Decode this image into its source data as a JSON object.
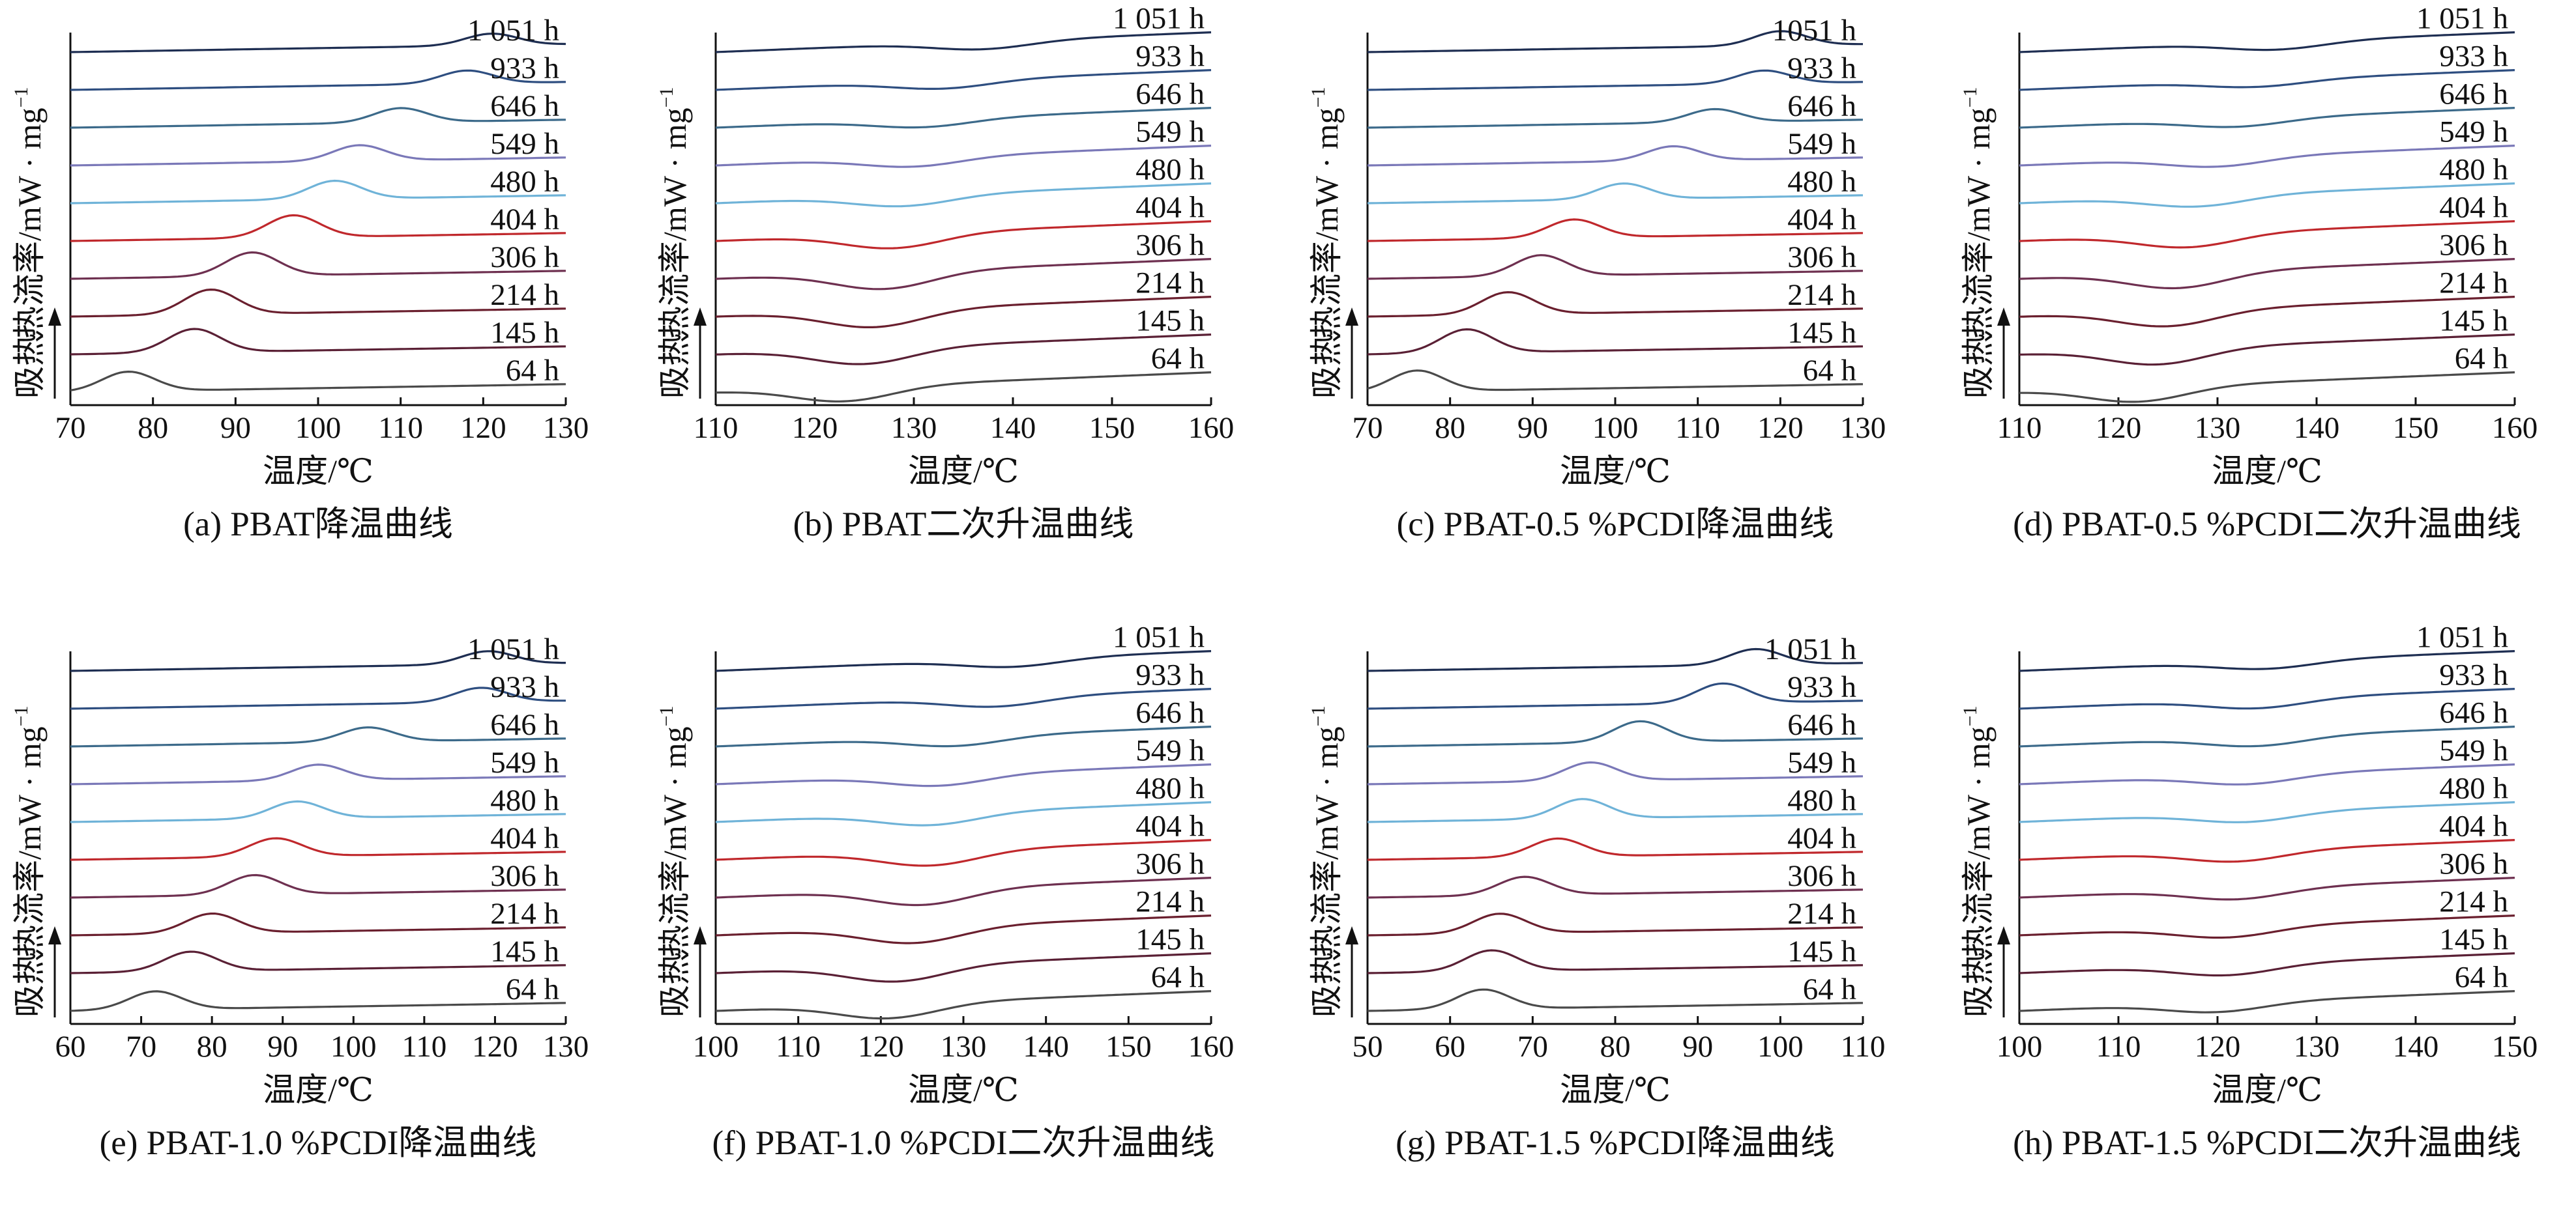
{
  "figure": {
    "ylabel": "热流率/mW · mg",
    "ylabel_sup": "−1",
    "xlabel": "温度/℃",
    "endo_label": "吸热"
  },
  "colors": {
    "64 h": "#4a4a4a",
    "145 h": "#5a2035",
    "214 h": "#6a1f2e",
    "306 h": "#6e3050",
    "404 h": "#c0282c",
    "480 h": "#6fb3d8",
    "549 h": "#7a78b8",
    "646 h": "#3c6a8a",
    "933 h": "#2e4e80",
    "1 051 h": "#1e2e52"
  },
  "chart_data": [
    {
      "id": "a",
      "type": "line",
      "caption": "(a) PBAT降温曲线",
      "xlim": [
        70,
        130
      ],
      "xticks": [
        "70",
        "80",
        "90",
        "100",
        "110",
        "120",
        "130"
      ],
      "feature": "peak",
      "peak_amplitude": [
        30,
        36,
        38,
        36,
        34,
        28,
        24,
        22,
        20,
        18
      ],
      "series": [
        {
          "name": "64 h",
          "peak_x": 77,
          "label": "64 h"
        },
        {
          "name": "145 h",
          "peak_x": 85,
          "label": "145 h"
        },
        {
          "name": "214 h",
          "peak_x": 87,
          "label": "214 h"
        },
        {
          "name": "306 h",
          "peak_x": 92,
          "label": "306 h"
        },
        {
          "name": "404 h",
          "peak_x": 97,
          "label": "404 h"
        },
        {
          "name": "480 h",
          "peak_x": 102,
          "label": "480 h"
        },
        {
          "name": "549 h",
          "peak_x": 105,
          "label": "549 h"
        },
        {
          "name": "646 h",
          "peak_x": 110,
          "label": "646 h"
        },
        {
          "name": "933 h",
          "peak_x": 118,
          "label": "933 h"
        },
        {
          "name": "1 051 h",
          "peak_x": 121,
          "label": "1 051 h"
        }
      ]
    },
    {
      "id": "b",
      "type": "line",
      "caption": "(b) PBAT二次升温曲线",
      "xlim": [
        110,
        160
      ],
      "xticks": [
        "110",
        "120",
        "130",
        "140",
        "150",
        "160"
      ],
      "feature": "trough",
      "peak_amplitude": [
        22,
        24,
        26,
        26,
        22,
        16,
        14,
        12,
        12,
        12
      ],
      "series": [
        {
          "name": "64 h",
          "peak_x": 123,
          "label": "64 h"
        },
        {
          "name": "145 h",
          "peak_x": 125,
          "label": "145 h"
        },
        {
          "name": "214 h",
          "peak_x": 126,
          "label": "214 h"
        },
        {
          "name": "306 h",
          "peak_x": 127,
          "label": "306 h"
        },
        {
          "name": "404 h",
          "peak_x": 128,
          "label": "404 h"
        },
        {
          "name": "480 h",
          "peak_x": 129,
          "label": "480 h"
        },
        {
          "name": "549 h",
          "peak_x": 130,
          "label": "549 h"
        },
        {
          "name": "646 h",
          "peak_x": 131,
          "label": "646 h"
        },
        {
          "name": "933 h",
          "peak_x": 133,
          "label": "933 h"
        },
        {
          "name": "1 051 h",
          "peak_x": 137,
          "label": "1 051 h"
        }
      ]
    },
    {
      "id": "c",
      "type": "line",
      "caption": "(c) PBAT-0.5 %PCDI降温曲线",
      "xlim": [
        70,
        130
      ],
      "xticks": [
        "70",
        "80",
        "90",
        "100",
        "110",
        "120",
        "130"
      ],
      "feature": "peak",
      "peak_amplitude": [
        32,
        36,
        34,
        32,
        28,
        24,
        22,
        20,
        20,
        22
      ],
      "series": [
        {
          "name": "64 h",
          "peak_x": 76,
          "label": "64 h"
        },
        {
          "name": "145 h",
          "peak_x": 82,
          "label": "145 h"
        },
        {
          "name": "214 h",
          "peak_x": 87,
          "label": "214 h"
        },
        {
          "name": "306 h",
          "peak_x": 91,
          "label": "306 h"
        },
        {
          "name": "404 h",
          "peak_x": 95,
          "label": "404 h"
        },
        {
          "name": "480 h",
          "peak_x": 101,
          "label": "480 h"
        },
        {
          "name": "549 h",
          "peak_x": 107,
          "label": "549 h"
        },
        {
          "name": "646 h",
          "peak_x": 112,
          "label": "646 h"
        },
        {
          "name": "933 h",
          "peak_x": 118,
          "label": "933 h"
        },
        {
          "name": "1051 h",
          "peak_x": 120,
          "label": "1051 h"
        }
      ]
    },
    {
      "id": "d",
      "type": "line",
      "caption": "(d) PBAT-0.5 %PCDI二次升温曲线",
      "xlim": [
        110,
        160
      ],
      "xticks": [
        "110",
        "120",
        "130",
        "140",
        "150",
        "160"
      ],
      "feature": "trough",
      "peak_amplitude": [
        22,
        24,
        24,
        24,
        20,
        16,
        14,
        12,
        10,
        12
      ],
      "series": [
        {
          "name": "64 h",
          "peak_x": 122,
          "label": "64 h"
        },
        {
          "name": "145 h",
          "peak_x": 124,
          "label": "145 h"
        },
        {
          "name": "214 h",
          "peak_x": 125,
          "label": "214 h"
        },
        {
          "name": "306 h",
          "peak_x": 126,
          "label": "306 h"
        },
        {
          "name": "404 h",
          "peak_x": 127,
          "label": "404 h"
        },
        {
          "name": "480 h",
          "peak_x": 128,
          "label": "480 h"
        },
        {
          "name": "549 h",
          "peak_x": 130,
          "label": "549 h"
        },
        {
          "name": "646 h",
          "peak_x": 132,
          "label": "646 h"
        },
        {
          "name": "933 h",
          "peak_x": 134,
          "label": "933 h"
        },
        {
          "name": "1 051 h",
          "peak_x": 136,
          "label": "1 051 h"
        }
      ]
    },
    {
      "id": "e",
      "type": "line",
      "caption": "(e) PBAT-1.0 %PCDI降温曲线",
      "xlim": [
        60,
        130
      ],
      "xticks": [
        "60",
        "70",
        "80",
        "90",
        "100",
        "110",
        "120",
        "130"
      ],
      "feature": "peak",
      "peak_amplitude": [
        28,
        30,
        30,
        30,
        28,
        26,
        24,
        22,
        22,
        20
      ],
      "series": [
        {
          "name": "64 h",
          "peak_x": 72,
          "label": "64 h"
        },
        {
          "name": "145 h",
          "peak_x": 77,
          "label": "145 h"
        },
        {
          "name": "214 h",
          "peak_x": 80,
          "label": "214 h"
        },
        {
          "name": "306 h",
          "peak_x": 86,
          "label": "306 h"
        },
        {
          "name": "404 h",
          "peak_x": 89,
          "label": "404 h"
        },
        {
          "name": "480 h",
          "peak_x": 92,
          "label": "480 h"
        },
        {
          "name": "549 h",
          "peak_x": 95,
          "label": "549 h"
        },
        {
          "name": "646 h",
          "peak_x": 102,
          "label": "646 h"
        },
        {
          "name": "933 h",
          "peak_x": 118,
          "label": "933 h"
        },
        {
          "name": "1 051 h",
          "peak_x": 119,
          "label": "1 051 h"
        }
      ]
    },
    {
      "id": "f",
      "type": "line",
      "caption": "(f) PBAT-1.0 %PCDI二次升温曲线",
      "xlim": [
        100,
        160
      ],
      "xticks": [
        "100",
        "110",
        "120",
        "130",
        "140",
        "150",
        "160"
      ],
      "feature": "trough",
      "peak_amplitude": [
        22,
        24,
        24,
        24,
        22,
        18,
        16,
        14,
        14,
        12
      ],
      "series": [
        {
          "name": "64 h",
          "peak_x": 121,
          "label": "64 h"
        },
        {
          "name": "145 h",
          "peak_x": 122,
          "label": "145 h"
        },
        {
          "name": "214 h",
          "peak_x": 124,
          "label": "214 h"
        },
        {
          "name": "306 h",
          "peak_x": 125,
          "label": "306 h"
        },
        {
          "name": "404 h",
          "peak_x": 126,
          "label": "404 h"
        },
        {
          "name": "480 h",
          "peak_x": 126,
          "label": "480 h"
        },
        {
          "name": "549 h",
          "peak_x": 127,
          "label": "549 h"
        },
        {
          "name": "646 h",
          "peak_x": 129,
          "label": "646 h"
        },
        {
          "name": "933 h",
          "peak_x": 134,
          "label": "933 h"
        },
        {
          "name": "1 051 h",
          "peak_x": 136,
          "label": "1 051 h"
        }
      ]
    },
    {
      "id": "g",
      "type": "line",
      "caption": "(g) PBAT-1.5 %PCDI降温曲线",
      "xlim": [
        50,
        110
      ],
      "xticks": [
        "50",
        "60",
        "70",
        "80",
        "90",
        "100",
        "110"
      ],
      "feature": "peak",
      "peak_amplitude": [
        30,
        32,
        30,
        28,
        28,
        30,
        28,
        32,
        30,
        24
      ],
      "series": [
        {
          "name": "64 h",
          "peak_x": 64,
          "label": "64 h"
        },
        {
          "name": "145 h",
          "peak_x": 65,
          "label": "145 h"
        },
        {
          "name": "214 h",
          "peak_x": 66,
          "label": "214 h"
        },
        {
          "name": "306 h",
          "peak_x": 69,
          "label": "306 h"
        },
        {
          "name": "404 h",
          "peak_x": 73,
          "label": "404 h"
        },
        {
          "name": "480 h",
          "peak_x": 76,
          "label": "480 h"
        },
        {
          "name": "549 h",
          "peak_x": 77,
          "label": "549 h"
        },
        {
          "name": "646 h",
          "peak_x": 83,
          "label": "646 h"
        },
        {
          "name": "933 h",
          "peak_x": 93,
          "label": "933 h"
        },
        {
          "name": "1 051 h",
          "peak_x": 97,
          "label": "1 051 h"
        }
      ]
    },
    {
      "id": "h",
      "type": "line",
      "caption": "(h) PBAT-1.5 %PCDI二次升温曲线",
      "xlim": [
        100,
        150
      ],
      "xticks": [
        "100",
        "110",
        "120",
        "130",
        "140",
        "150"
      ],
      "feature": "trough",
      "peak_amplitude": [
        14,
        16,
        16,
        16,
        16,
        14,
        14,
        14,
        14,
        12
      ],
      "series": [
        {
          "name": "64 h",
          "peak_x": 120,
          "label": "64 h"
        },
        {
          "name": "145 h",
          "peak_x": 121,
          "label": "145 h"
        },
        {
          "name": "214 h",
          "peak_x": 121,
          "label": "214 h"
        },
        {
          "name": "306 h",
          "peak_x": 122,
          "label": "306 h"
        },
        {
          "name": "404 h",
          "peak_x": 122,
          "label": "404 h"
        },
        {
          "name": "480 h",
          "peak_x": 123,
          "label": "480 h"
        },
        {
          "name": "549 h",
          "peak_x": 123,
          "label": "549 h"
        },
        {
          "name": "646 h",
          "peak_x": 124,
          "label": "646 h"
        },
        {
          "name": "933 h",
          "peak_x": 124,
          "label": "933 h"
        },
        {
          "name": "1 051 h",
          "peak_x": 125,
          "label": "1 051 h"
        }
      ]
    }
  ]
}
